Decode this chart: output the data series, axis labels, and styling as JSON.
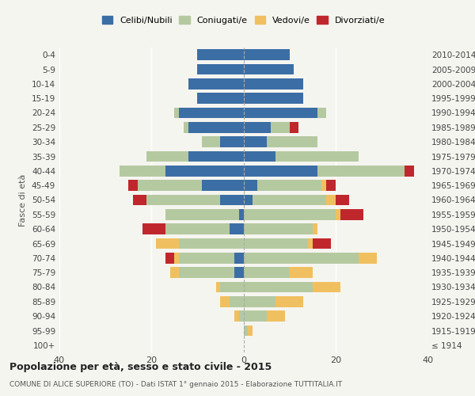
{
  "age_groups": [
    "100+",
    "95-99",
    "90-94",
    "85-89",
    "80-84",
    "75-79",
    "70-74",
    "65-69",
    "60-64",
    "55-59",
    "50-54",
    "45-49",
    "40-44",
    "35-39",
    "30-34",
    "25-29",
    "20-24",
    "15-19",
    "10-14",
    "5-9",
    "0-4"
  ],
  "birth_years": [
    "≤ 1914",
    "1915-1919",
    "1920-1924",
    "1925-1929",
    "1930-1934",
    "1935-1939",
    "1940-1944",
    "1945-1949",
    "1950-1954",
    "1955-1959",
    "1960-1964",
    "1965-1969",
    "1970-1974",
    "1975-1979",
    "1980-1984",
    "1985-1989",
    "1990-1994",
    "1995-1999",
    "2000-2004",
    "2005-2009",
    "2010-2014"
  ],
  "colors": {
    "celibi": "#3b6ea5",
    "coniugati": "#b5c9a0",
    "vedovi": "#f0c060",
    "divorziati": "#c0272d"
  },
  "male": {
    "celibi": [
      0,
      0,
      0,
      0,
      0,
      2,
      2,
      0,
      3,
      1,
      5,
      9,
      17,
      12,
      5,
      12,
      14,
      10,
      12,
      10,
      10
    ],
    "coniugati": [
      0,
      0,
      1,
      3,
      5,
      12,
      12,
      14,
      14,
      16,
      16,
      14,
      10,
      9,
      4,
      1,
      1,
      0,
      0,
      0,
      0
    ],
    "vedovi": [
      0,
      0,
      1,
      2,
      1,
      2,
      1,
      5,
      0,
      0,
      0,
      0,
      0,
      0,
      0,
      0,
      0,
      0,
      0,
      0,
      0
    ],
    "divorziati": [
      0,
      0,
      0,
      0,
      0,
      0,
      2,
      0,
      5,
      0,
      3,
      2,
      0,
      0,
      0,
      0,
      0,
      0,
      0,
      0,
      0
    ]
  },
  "female": {
    "celibi": [
      0,
      0,
      0,
      0,
      0,
      0,
      0,
      0,
      0,
      0,
      2,
      3,
      16,
      7,
      5,
      6,
      16,
      13,
      13,
      11,
      10
    ],
    "coniugati": [
      0,
      1,
      5,
      7,
      15,
      10,
      25,
      14,
      15,
      20,
      16,
      14,
      19,
      18,
      11,
      4,
      2,
      0,
      0,
      0,
      0
    ],
    "vedovi": [
      0,
      1,
      4,
      6,
      6,
      5,
      4,
      1,
      1,
      1,
      2,
      1,
      0,
      0,
      0,
      0,
      0,
      0,
      0,
      0,
      0
    ],
    "divorziati": [
      0,
      0,
      0,
      0,
      0,
      0,
      0,
      4,
      0,
      5,
      3,
      2,
      2,
      0,
      0,
      2,
      0,
      0,
      0,
      0,
      0
    ]
  },
  "xlim": 40,
  "title": "Popolazione per età, sesso e stato civile - 2015",
  "subtitle": "COMUNE DI ALICE SUPERIORE (TO) - Dati ISTAT 1° gennaio 2015 - Elaborazione TUTTITALIA.IT",
  "ylabel_left": "Fasce di età",
  "legend_labels": [
    "Celibi/Nubili",
    "Coniugati/e",
    "Vedovi/e",
    "Divorziati/e"
  ],
  "bg_color": "#f5f5f0",
  "bar_height": 0.75
}
